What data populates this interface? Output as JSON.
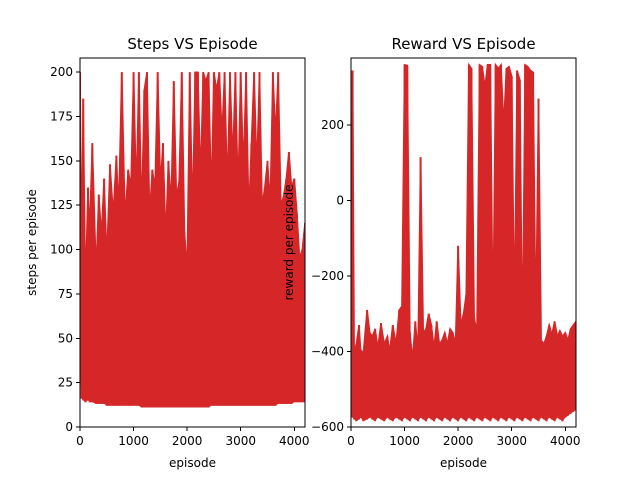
{
  "chart_data": [
    {
      "type": "line",
      "title": "Steps VS Episode",
      "xlabel": "episode",
      "ylabel": "steps per episode",
      "xlim": [
        0,
        4200
      ],
      "ylim": [
        0,
        208
      ],
      "xticks": [
        "0",
        "1000",
        "2000",
        "3000",
        "4000"
      ],
      "xtick_values": [
        0,
        1000,
        2000,
        3000,
        4000
      ],
      "yticks": [
        "0",
        "25",
        "50",
        "75",
        "100",
        "125",
        "150",
        "175",
        "200"
      ],
      "ytick_values": [
        0,
        25,
        50,
        75,
        100,
        125,
        150,
        175,
        200
      ],
      "series_color": "#d62728",
      "series_underlay_color": "#7f7f7f",
      "series": [
        {
          "x": [
            0,
            30,
            60,
            100,
            150,
            180,
            230,
            300,
            350,
            400,
            450,
            500,
            560,
            620,
            680,
            720,
            780,
            840,
            900,
            950,
            1000,
            1050,
            1100,
            1150,
            1200,
            1250,
            1300,
            1350,
            1400,
            1450,
            1500,
            1550,
            1600,
            1650,
            1700,
            1750,
            1800,
            1850,
            1900,
            1950,
            2000,
            2050,
            2100,
            2150,
            2200,
            2250,
            2300,
            2350,
            2400,
            2450,
            2500,
            2550,
            2600,
            2650,
            2700,
            2750,
            2800,
            2850,
            2900,
            2950,
            3000,
            3050,
            3100,
            3150,
            3200,
            3250,
            3300,
            3350,
            3400,
            3450,
            3500,
            3550,
            3600,
            3650,
            3700,
            3750,
            3800,
            3850,
            3900,
            3950,
            4000,
            4050,
            4100,
            4150,
            4200
          ],
          "low": [
            31,
            16,
            15,
            14,
            15,
            14,
            14,
            13,
            13,
            13,
            13,
            12,
            12,
            12,
            12,
            12,
            12,
            12,
            12,
            12,
            12,
            12,
            12,
            11,
            11,
            11,
            11,
            11,
            11,
            11,
            11,
            11,
            11,
            11,
            11,
            11,
            11,
            11,
            11,
            11,
            11,
            11,
            11,
            11,
            11,
            11,
            11,
            11,
            11,
            12,
            12,
            12,
            12,
            12,
            12,
            12,
            12,
            12,
            12,
            12,
            12,
            12,
            12,
            12,
            12,
            12,
            12,
            12,
            12,
            12,
            12,
            12,
            12,
            12,
            13,
            13,
            13,
            13,
            13,
            13,
            14,
            14,
            14,
            14,
            14
          ],
          "high": [
            200,
            98,
            185,
            78,
            135,
            110,
            160,
            88,
            131,
            108,
            140,
            95,
            148,
            120,
            153,
            122,
            200,
            118,
            145,
            135,
            200,
            132,
            200,
            120,
            190,
            200,
            120,
            145,
            135,
            200,
            137,
            160,
            107,
            150,
            126,
            195,
            130,
            138,
            200,
            110,
            88,
            200,
            120,
            200,
            200,
            140,
            200,
            195,
            200,
            130,
            200,
            190,
            200,
            165,
            200,
            135,
            200,
            150,
            200,
            133,
            200,
            145,
            200,
            120,
            160,
            200,
            145,
            200,
            125,
            135,
            150,
            126,
            200,
            165,
            200,
            125,
            130,
            140,
            155,
            135,
            140,
            120,
            95,
            100,
            115
          ]
        }
      ]
    },
    {
      "type": "line",
      "title": "Reward VS Episode",
      "xlabel": "episode",
      "ylabel": "reward per episode",
      "xlim": [
        0,
        4200
      ],
      "ylim": [
        -600,
        378
      ],
      "xticks": [
        "0",
        "1000",
        "2000",
        "3000",
        "4000"
      ],
      "xtick_values": [
        0,
        1000,
        2000,
        3000,
        4000
      ],
      "yticks": [
        "−600",
        "−400",
        "−200",
        "0",
        "200"
      ],
      "ytick_values": [
        -600,
        -400,
        -200,
        0,
        200
      ],
      "series_color": "#d62728",
      "series_underlay_color": "#7f7f7f",
      "series": [
        {
          "x": [
            0,
            30,
            60,
            100,
            150,
            180,
            230,
            300,
            350,
            400,
            450,
            500,
            560,
            620,
            680,
            720,
            780,
            840,
            900,
            950,
            1000,
            1050,
            1100,
            1150,
            1200,
            1250,
            1300,
            1350,
            1400,
            1450,
            1500,
            1550,
            1600,
            1650,
            1700,
            1750,
            1800,
            1850,
            1900,
            1950,
            2000,
            2050,
            2100,
            2150,
            2200,
            2250,
            2300,
            2350,
            2400,
            2450,
            2500,
            2550,
            2600,
            2650,
            2700,
            2750,
            2800,
            2850,
            2900,
            2950,
            3000,
            3050,
            3100,
            3150,
            3200,
            3250,
            3300,
            3350,
            3400,
            3450,
            3500,
            3550,
            3600,
            3650,
            3700,
            3750,
            3800,
            3850,
            3900,
            3950,
            4000,
            4050,
            4100,
            4150,
            4200
          ],
          "low": [
            -570,
            -575,
            -580,
            -585,
            -580,
            -575,
            -585,
            -580,
            -575,
            -580,
            -585,
            -575,
            -580,
            -585,
            -575,
            -580,
            -585,
            -575,
            -580,
            -585,
            -575,
            -580,
            -585,
            -575,
            -580,
            -585,
            -575,
            -580,
            -585,
            -575,
            -580,
            -585,
            -575,
            -580,
            -585,
            -575,
            -580,
            -585,
            -575,
            -580,
            -585,
            -575,
            -580,
            -585,
            -575,
            -580,
            -585,
            -575,
            -580,
            -585,
            -575,
            -580,
            -585,
            -575,
            -580,
            -585,
            -575,
            -580,
            -585,
            -575,
            -580,
            -585,
            -575,
            -580,
            -585,
            -575,
            -580,
            -585,
            -575,
            -580,
            -585,
            -575,
            -580,
            -585,
            -575,
            -580,
            -585,
            -575,
            -580,
            -585,
            -575,
            -570,
            -565,
            -560,
            -555
          ],
          "high": [
            -345,
            345,
            -400,
            -380,
            -330,
            -395,
            -405,
            -290,
            -350,
            -360,
            -340,
            -390,
            -325,
            -380,
            -360,
            -400,
            -330,
            -380,
            -290,
            -280,
            360,
            358,
            -350,
            -420,
            -320,
            -400,
            115,
            -350,
            -340,
            -300,
            -330,
            -390,
            -320,
            -380,
            -370,
            -350,
            -380,
            -340,
            -350,
            -380,
            -120,
            -330,
            -300,
            -250,
            360,
            350,
            -310,
            -350,
            360,
            355,
            300,
            360,
            360,
            -330,
            360,
            350,
            360,
            200,
            350,
            355,
            330,
            -300,
            345,
            320,
            -380,
            360,
            355,
            345,
            340,
            -330,
            270,
            -370,
            -380,
            -360,
            -330,
            -355,
            -320,
            -360,
            -345,
            -360,
            -350,
            -370,
            -340,
            -330,
            -320
          ]
        }
      ]
    }
  ]
}
